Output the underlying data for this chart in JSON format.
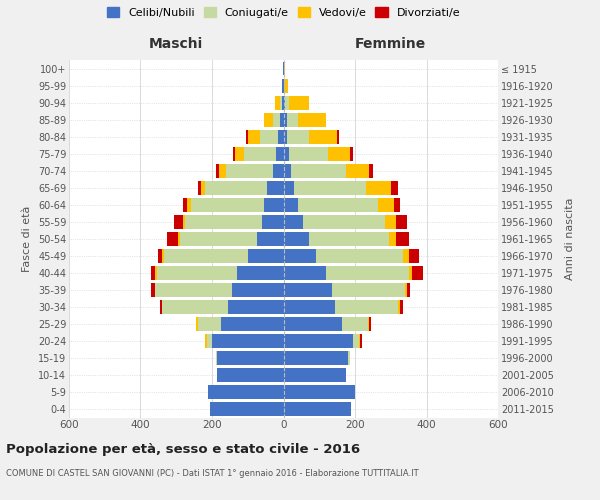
{
  "age_groups": [
    "100+",
    "95-99",
    "90-94",
    "85-89",
    "80-84",
    "75-79",
    "70-74",
    "65-69",
    "60-64",
    "55-59",
    "50-54",
    "45-49",
    "40-44",
    "35-39",
    "30-34",
    "25-29",
    "20-24",
    "15-19",
    "10-14",
    "5-9",
    "0-4"
  ],
  "birth_years": [
    "≤ 1915",
    "1916-1920",
    "1921-1925",
    "1926-1930",
    "1931-1935",
    "1936-1940",
    "1941-1945",
    "1946-1950",
    "1951-1955",
    "1956-1960",
    "1961-1965",
    "1966-1970",
    "1971-1975",
    "1976-1980",
    "1981-1985",
    "1986-1990",
    "1991-1995",
    "1996-2000",
    "2001-2005",
    "2006-2010",
    "2011-2015"
  ],
  "male_celibe": [
    2,
    3,
    5,
    10,
    15,
    20,
    30,
    45,
    55,
    60,
    75,
    100,
    130,
    145,
    155,
    175,
    200,
    185,
    185,
    210,
    205
  ],
  "male_coniugato": [
    0,
    0,
    5,
    20,
    50,
    90,
    130,
    175,
    205,
    215,
    215,
    235,
    225,
    215,
    185,
    65,
    15,
    5,
    0,
    0,
    0
  ],
  "male_vedovo": [
    0,
    2,
    15,
    25,
    35,
    25,
    20,
    10,
    10,
    5,
    5,
    5,
    5,
    0,
    0,
    5,
    5,
    0,
    0,
    0,
    0
  ],
  "male_divorziato": [
    0,
    0,
    0,
    0,
    5,
    5,
    10,
    10,
    10,
    25,
    30,
    10,
    10,
    10,
    5,
    0,
    0,
    0,
    0,
    0,
    0
  ],
  "female_celibe": [
    1,
    2,
    5,
    10,
    10,
    15,
    20,
    30,
    40,
    55,
    70,
    90,
    120,
    135,
    145,
    165,
    195,
    180,
    175,
    200,
    190
  ],
  "female_coniugato": [
    0,
    0,
    10,
    30,
    60,
    110,
    155,
    200,
    225,
    230,
    225,
    245,
    230,
    205,
    175,
    70,
    15,
    5,
    0,
    0,
    0
  ],
  "female_vedovo": [
    2,
    10,
    55,
    80,
    80,
    60,
    65,
    70,
    45,
    30,
    20,
    15,
    10,
    5,
    5,
    5,
    5,
    0,
    0,
    0,
    0
  ],
  "female_divorziato": [
    0,
    0,
    0,
    0,
    5,
    10,
    10,
    20,
    15,
    30,
    35,
    30,
    30,
    10,
    10,
    5,
    5,
    0,
    0,
    0,
    0
  ],
  "color_celibe": "#4472c4",
  "color_coniugato": "#c5d9a0",
  "color_vedovo": "#ffc000",
  "color_divorziato": "#cc0000",
  "title": "Popolazione per età, sesso e stato civile - 2016",
  "subtitle": "COMUNE DI CASTEL SAN GIOVANNI (PC) - Dati ISTAT 1° gennaio 2016 - Elaborazione TUTTITALIA.IT",
  "xlabel_left": "Maschi",
  "xlabel_right": "Femmine",
  "ylabel_left": "Fasce di età",
  "ylabel_right": "Anni di nascita",
  "xlim": 600,
  "bg_color": "#f0f0f0",
  "plot_bg_color": "#ffffff",
  "legend_labels": [
    "Celibi/Nubili",
    "Coniugati/e",
    "Vedovi/e",
    "Divorziati/e"
  ]
}
